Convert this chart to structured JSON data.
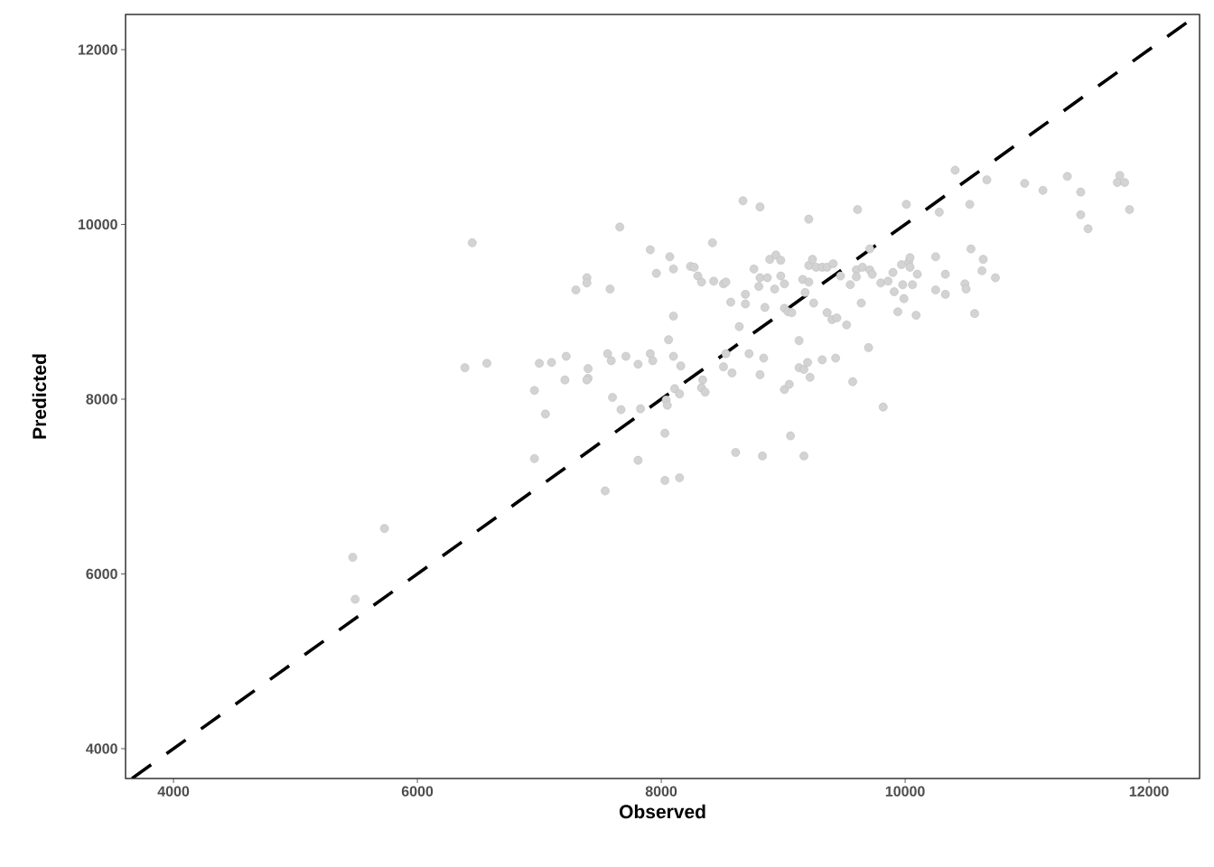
{
  "chart_data": {
    "type": "scatter",
    "xlabel": "Observed",
    "ylabel": "Predicted",
    "xlim": [
      3607,
      12415
    ],
    "ylim": [
      3659,
      12403
    ],
    "xticks": [
      4000,
      6000,
      8000,
      10000,
      12000
    ],
    "yticks": [
      4000,
      6000,
      8000,
      10000,
      12000
    ],
    "series": [
      {
        "marker": "circle",
        "color": "#d3d3d3",
        "x": [
          5470,
          5490,
          5730,
          6390,
          6450,
          6570,
          6960,
          6960,
          7000,
          7050,
          7100,
          7210,
          7220,
          7300,
          7390,
          7390,
          7400,
          7400,
          7390,
          7580,
          7560,
          7590,
          7660,
          7670,
          7600,
          7710,
          7810,
          7830,
          7810,
          7540,
          7910,
          7960,
          7910,
          7930,
          8070,
          8100,
          8060,
          8100,
          8100,
          8160,
          8030,
          8030,
          8150,
          8040,
          8050,
          8110,
          8150,
          8240,
          8270,
          8300,
          8330,
          8340,
          8330,
          8360,
          8420,
          8430,
          8510,
          8530,
          8510,
          8580,
          8530,
          8570,
          8610,
          8640,
          8670,
          8690,
          8690,
          8720,
          8760,
          8810,
          8800,
          8810,
          8870,
          8810,
          8830,
          8840,
          8850,
          8890,
          8930,
          8940,
          8980,
          8980,
          9010,
          9010,
          9050,
          9010,
          9040,
          9070,
          9060,
          9130,
          9130,
          9170,
          9200,
          9170,
          9160,
          9180,
          9210,
          9210,
          9210,
          9220,
          9240,
          9250,
          9270,
          9320,
          9360,
          9320,
          9360,
          9400,
          9410,
          9430,
          9440,
          9470,
          9520,
          9550,
          9570,
          9600,
          9600,
          9610,
          9640,
          9650,
          9700,
          9710,
          9710,
          9730,
          9800,
          9860,
          9820,
          9900,
          9910,
          9940,
          9970,
          9980,
          9990,
          10010,
          10030,
          10040,
          10040,
          10060,
          10090,
          10100,
          10250,
          10250,
          10280,
          10330,
          10330,
          10410,
          10490,
          10500,
          10530,
          10540,
          10570,
          10630,
          10640,
          10670,
          10740,
          10980,
          11130,
          11330,
          11440,
          11440,
          11500,
          11760,
          11740,
          11800,
          11840
        ],
        "values": [
          6190,
          5710,
          6520,
          8360,
          9790,
          8410,
          8100,
          7320,
          8410,
          7830,
          8420,
          8220,
          8490,
          9250,
          9390,
          9330,
          8350,
          8240,
          8220,
          9260,
          8520,
          8440,
          9970,
          7880,
          8020,
          8490,
          8400,
          7890,
          7300,
          6950,
          9710,
          9440,
          8520,
          8440,
          9630,
          9490,
          8680,
          8950,
          8490,
          8380,
          7610,
          7070,
          7100,
          7990,
          7930,
          8120,
          8060,
          9520,
          9510,
          9410,
          9340,
          8220,
          8130,
          8080,
          9790,
          9350,
          9320,
          9340,
          8370,
          8300,
          8520,
          9110,
          7390,
          8830,
          10270,
          9200,
          9090,
          8520,
          9490,
          10200,
          9290,
          9390,
          9390,
          8280,
          7350,
          8470,
          9050,
          9600,
          9260,
          9650,
          9590,
          9410,
          9320,
          8110,
          8170,
          9040,
          9000,
          8990,
          7580,
          8360,
          8670,
          8340,
          8420,
          7350,
          9370,
          9220,
          10060,
          9530,
          9340,
          8250,
          9600,
          9100,
          9510,
          9510,
          9510,
          8450,
          8990,
          8910,
          9550,
          8470,
          8930,
          9410,
          8850,
          9310,
          8200,
          9480,
          9400,
          10170,
          9100,
          9510,
          8590,
          9720,
          9480,
          9430,
          9330,
          9350,
          7910,
          9450,
          9230,
          9000,
          9540,
          9310,
          9150,
          10230,
          9570,
          9620,
          9510,
          9310,
          8960,
          9430,
          9630,
          9250,
          10140,
          9430,
          9200,
          10620,
          9320,
          9260,
          10230,
          9720,
          8980,
          9470,
          9600,
          10510,
          9390,
          10470,
          10390,
          10550,
          10370,
          10110,
          9950,
          10560,
          10480,
          10480,
          10170
        ]
      },
      {
        "type": "line",
        "color": "#000000",
        "marker": "none",
        "line_style": "dashed",
        "x": [
          3660,
          12400
        ],
        "values": [
          3660,
          12400
        ]
      }
    ]
  }
}
